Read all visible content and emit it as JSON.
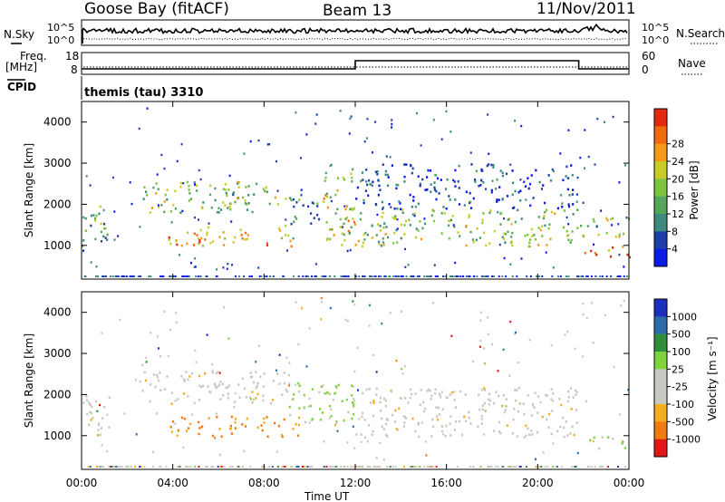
{
  "header": {
    "station": "Goose Bay (fitACF)",
    "beam": "Beam 13",
    "date": "11/Nov/2011"
  },
  "status_panels": {
    "nsky_label": "N.Sky",
    "nsearch_label": "N.Search",
    "noise_ticks": [
      "10^5",
      "10^0"
    ],
    "freq_label_line1": "Freq.",
    "freq_label_line2": "[MHz]",
    "freq_ticks": [
      "18",
      "8"
    ],
    "nave_label": "Nave",
    "nave_ticks": [
      "60",
      "0"
    ],
    "cpid_label": "CPID",
    "cpid_text": "themis (tau) 3310"
  },
  "axes": {
    "xlabel": "Time UT",
    "x_ticks": [
      "00:00",
      "04:00",
      "08:00",
      "12:00",
      "16:00",
      "20:00",
      "00:00"
    ],
    "ylabel_top": "Slant Range [km]",
    "ylabel_bottom": "Slant Range [km]",
    "y_ticks": [
      "1000",
      "2000",
      "3000",
      "4000"
    ]
  },
  "colorbars": {
    "power": {
      "label": "Power [dB]",
      "ticks": [
        "4",
        "8",
        "12",
        "16",
        "20",
        "24",
        "28"
      ],
      "colors": [
        "#0c1be8",
        "#1f3fa7",
        "#3f8a7e",
        "#55a55a",
        "#7dc43f",
        "#c7cc26",
        "#f29a16",
        "#f06a10",
        "#e42a0c"
      ]
    },
    "velocity": {
      "label": "Velocity [m s⁻¹]",
      "ticks": [
        "1000",
        "500",
        "100",
        "25",
        "-25",
        "-100",
        "-500",
        "-1000"
      ],
      "colors": [
        "#1b2fbf",
        "#2e6aa8",
        "#2f8e3a",
        "#7fd43d",
        "#c8c8c0",
        "#c8c8c0",
        "#f5ae1f",
        "#f07b10",
        "#e21616"
      ]
    }
  },
  "chart_data": [
    {
      "type": "heatmap",
      "name": "power",
      "x_range_hours": [
        0,
        24
      ],
      "y_range_km": [
        180,
        4500
      ],
      "colorbar_range_db": [
        0,
        32
      ],
      "features": [
        {
          "t": [
            0.0,
            1.3
          ],
          "r": [
            1000,
            2000
          ],
          "level": "12-16"
        },
        {
          "t": [
            2.5,
            9.0
          ],
          "r": [
            1800,
            2600
          ],
          "level": "12-20"
        },
        {
          "t": [
            3.8,
            9.5
          ],
          "r": [
            1000,
            1500
          ],
          "level": "16-28"
        },
        {
          "t": [
            9.0,
            10.5
          ],
          "r": [
            1400,
            2200
          ],
          "level": "8-16"
        },
        {
          "t": [
            10.5,
            12.0
          ],
          "r": [
            900,
            2900
          ],
          "level": "12-28"
        },
        {
          "t": [
            12.0,
            21.7
          ],
          "r": [
            1000,
            1900
          ],
          "level": "12-24"
        },
        {
          "t": [
            12.0,
            21.5
          ],
          "r": [
            1900,
            3000
          ],
          "level": "4-12"
        },
        {
          "t": [
            21.7,
            24.0
          ],
          "r": [
            1200,
            1700
          ],
          "level": "12-20"
        },
        {
          "t": [
            22.0,
            24.0
          ],
          "r": [
            700,
            1000
          ],
          "level": "20-28"
        }
      ]
    },
    {
      "type": "heatmap",
      "name": "velocity",
      "x_range_hours": [
        0,
        24
      ],
      "y_range_km": [
        180,
        4500
      ],
      "colorbar_range_ms": [
        -1000,
        1000
      ],
      "features": [
        {
          "t": [
            0.0,
            1.3
          ],
          "r": [
            1000,
            2000
          ],
          "level": "-25..25"
        },
        {
          "t": [
            2.5,
            9.0
          ],
          "r": [
            1800,
            2600
          ],
          "level": "-25..25"
        },
        {
          "t": [
            3.8,
            9.5
          ],
          "r": [
            1000,
            1500
          ],
          "level": "-500..-100"
        },
        {
          "t": [
            9.0,
            12.0
          ],
          "r": [
            1300,
            2300
          ],
          "level": "25..100"
        },
        {
          "t": [
            12.0,
            21.7
          ],
          "r": [
            1000,
            2200
          ],
          "level": "-25..25"
        },
        {
          "t": [
            22.0,
            24.0
          ],
          "r": [
            700,
            1000
          ],
          "level": "25..100"
        }
      ]
    },
    {
      "type": "line",
      "name": "frequency",
      "x_hours": [
        0,
        12.0,
        12.0,
        21.8,
        21.8,
        24
      ],
      "y_mhz": [
        10.0,
        10.0,
        14.5,
        14.5,
        10.0,
        10.0
      ],
      "ylim": [
        8,
        18
      ]
    }
  ]
}
